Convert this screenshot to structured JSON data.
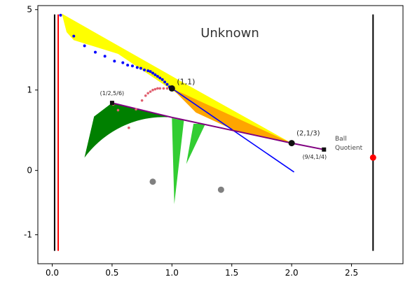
{
  "chart_data": {
    "type": "scatter",
    "title": "Unknown",
    "xlim": [
      -0.12,
      2.93
    ],
    "x_ticks": [
      {
        "value": 0.0,
        "label": "0.0"
      },
      {
        "value": 0.5,
        "label": "0.5"
      },
      {
        "value": 1.0,
        "label": "1.0"
      },
      {
        "value": 1.5,
        "label": "1.5"
      },
      {
        "value": 2.0,
        "label": "2.0"
      },
      {
        "value": 2.5,
        "label": "2.5"
      }
    ],
    "y_ticks": [
      {
        "position": 0.0,
        "label": "0"
      },
      {
        "position": 1.0,
        "label": "1"
      },
      {
        "position": 2.0,
        "label": "5"
      },
      {
        "position": -0.8,
        "label": "-1"
      }
    ],
    "y_scale_note_position_range": [
      -1.16,
      2.05
    ],
    "point_labels": [
      {
        "label": "(1,1)",
        "x": 1.0,
        "y": 1.0
      },
      {
        "label": "(1/2,5/6)",
        "x": 0.5,
        "y": 0.83
      },
      {
        "label": "(2,1/3)",
        "x": 2.0,
        "y": 0.34
      },
      {
        "label": "(9/4,1/4)",
        "x": 2.25,
        "y": 0.26
      }
    ],
    "annotations": [
      "Ball",
      "Quotient"
    ],
    "colors": {
      "yellow_region": "#ffff00",
      "orange_region": "#ffa500",
      "green_region": "#008000",
      "light_green_region": "#32cd32",
      "blue_points": "#0000ff",
      "pink_points": "#e06070",
      "purple_line": "#800080",
      "blue_line": "#0000ff",
      "red_line": "#ff0000",
      "gray_points": "#808080",
      "red_point": "#ff0000"
    }
  }
}
